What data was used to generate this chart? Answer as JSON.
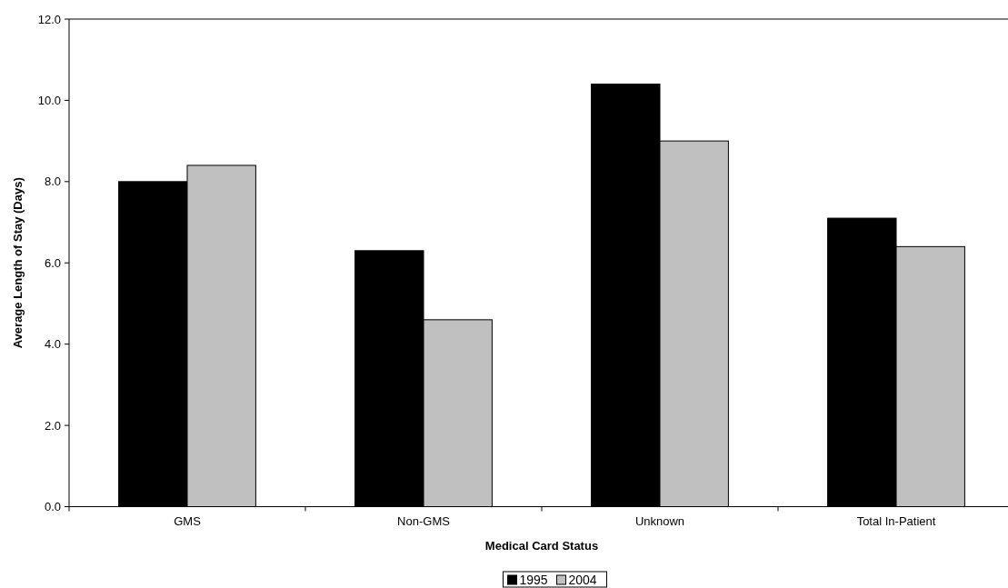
{
  "chart_data": {
    "type": "bar",
    "xlabel": "Medical Card Status",
    "ylabel": "Average Length of Stay (Days)",
    "categories": [
      "GMS",
      "Non-GMS",
      "Unknown",
      "Total In-Patient"
    ],
    "series": [
      {
        "name": "1995",
        "color": "#000000",
        "values": [
          8.0,
          6.3,
          10.4,
          7.1
        ]
      },
      {
        "name": "2004",
        "color": "#c0c0c0",
        "values": [
          8.4,
          4.6,
          9.0,
          6.4
        ]
      }
    ],
    "ylim": [
      0,
      12
    ],
    "yticks": [
      {
        "value": 0,
        "label": "0.0"
      },
      {
        "value": 2,
        "label": "2.0"
      },
      {
        "value": 4,
        "label": "4.0"
      },
      {
        "value": 6,
        "label": "6.0"
      },
      {
        "value": 8,
        "label": "8.0"
      },
      {
        "value": 10,
        "label": "10.0"
      },
      {
        "value": 12,
        "label": "12.0"
      }
    ],
    "legend": "bottom"
  }
}
